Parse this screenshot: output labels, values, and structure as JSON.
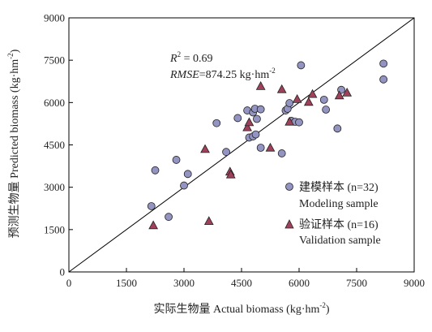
{
  "chart_data": {
    "type": "scatter",
    "xlabel": "实际生物量 Actual biomass (kg·hm",
    "xlabel_sup": "-2",
    "xlabel_end": ")",
    "ylabel": "预测生物量 Predicted biomass (kg·hm",
    "ylabel_sup": "-2",
    "ylabel_end": ")",
    "xlim": [
      0,
      9000
    ],
    "ylim": [
      0,
      9000
    ],
    "x_ticks": [
      0,
      1500,
      3000,
      4500,
      6000,
      7500,
      9000
    ],
    "y_ticks": [
      0,
      1500,
      3000,
      4500,
      6000,
      7500,
      9000
    ],
    "grid": false,
    "reference_line": {
      "from": [
        0,
        0
      ],
      "to": [
        9000,
        9000
      ]
    },
    "annotation": {
      "r2_label": "R",
      "r2_sup": "2",
      "r2_value": " = 0.69",
      "rmse_label": "RMSE",
      "rmse_value": "=874.25 kg·hm",
      "rmse_sup": "-2"
    },
    "legend": {
      "placement": "bottom-right",
      "modeling_title": "建模样本 (n=32)",
      "modeling_sub": "Modeling sample",
      "validation_title": "验证样本 (n=16)",
      "validation_sub": "Validation sample"
    },
    "colors": {
      "modeling_fill": "#9494c2",
      "validation_fill": "#a0415c",
      "marker_stroke": "#222222",
      "line": "#000000"
    },
    "series": [
      {
        "marker": "circle",
        "points": [
          [
            2150,
            2330
          ],
          [
            2250,
            3600
          ],
          [
            2600,
            1950
          ],
          [
            2800,
            3970
          ],
          [
            3000,
            3060
          ],
          [
            3100,
            3470
          ],
          [
            3850,
            5270
          ],
          [
            4100,
            4250
          ],
          [
            4400,
            5450
          ],
          [
            4650,
            5720
          ],
          [
            4700,
            4760
          ],
          [
            4800,
            4800
          ],
          [
            4800,
            5650
          ],
          [
            4850,
            5780
          ],
          [
            4900,
            5420
          ],
          [
            4870,
            4870
          ],
          [
            5000,
            4400
          ],
          [
            5000,
            5760
          ],
          [
            5550,
            4200
          ],
          [
            5650,
            5720
          ],
          [
            5700,
            5780
          ],
          [
            5750,
            5980
          ],
          [
            5800,
            5350
          ],
          [
            5900,
            5320
          ],
          [
            6000,
            5300
          ],
          [
            6050,
            7320
          ],
          [
            6650,
            6100
          ],
          [
            6700,
            5750
          ],
          [
            7000,
            5080
          ],
          [
            7100,
            6450
          ],
          [
            8200,
            7380
          ],
          [
            8200,
            6820
          ]
        ]
      },
      {
        "marker": "triangle",
        "points": [
          [
            2200,
            1630
          ],
          [
            3550,
            4330
          ],
          [
            3650,
            1780
          ],
          [
            4200,
            3530
          ],
          [
            4220,
            3430
          ],
          [
            4650,
            5100
          ],
          [
            4700,
            5280
          ],
          [
            5000,
            6560
          ],
          [
            5250,
            4380
          ],
          [
            5750,
            5300
          ],
          [
            5950,
            6100
          ],
          [
            6250,
            6000
          ],
          [
            6350,
            6280
          ],
          [
            7050,
            6230
          ],
          [
            7250,
            6330
          ],
          [
            5550,
            6450
          ]
        ]
      }
    ]
  }
}
